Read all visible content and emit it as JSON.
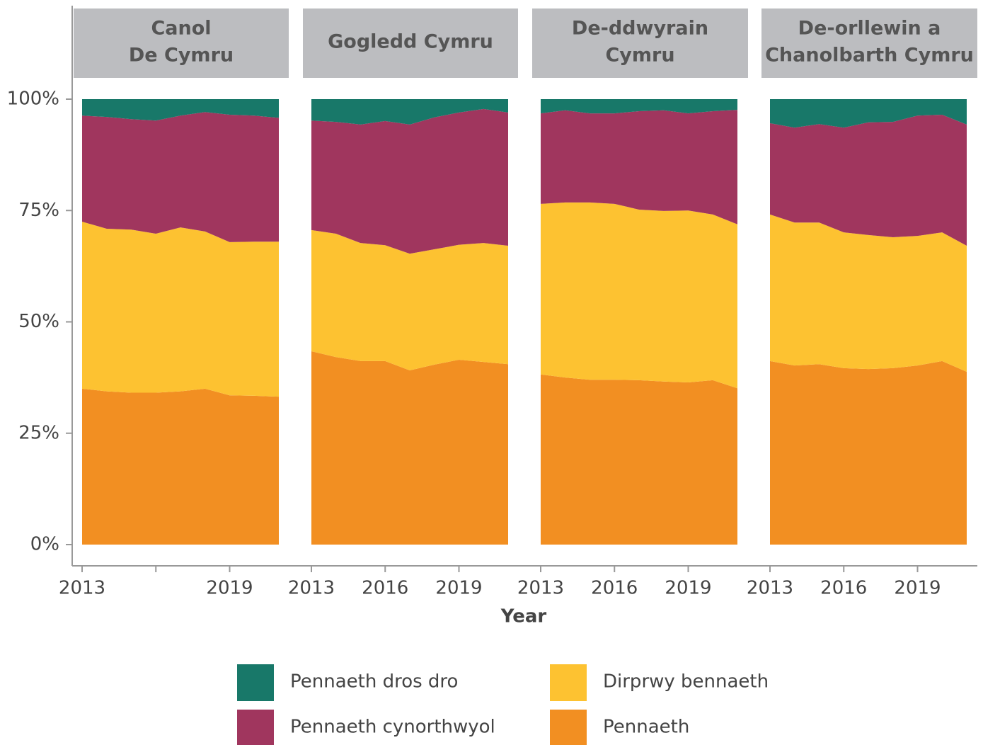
{
  "chart_data": {
    "type": "area",
    "xlabel": "Year",
    "ylim": [
      0,
      100
    ],
    "yticks": [
      {
        "value": 0,
        "label": "0%"
      },
      {
        "value": 25,
        "label": "25%"
      },
      {
        "value": 50,
        "label": "50%"
      },
      {
        "value": 75,
        "label": "75%"
      },
      {
        "value": 100,
        "label": "100%"
      }
    ],
    "xlim": [
      2013,
      2021
    ],
    "panels": [
      {
        "title": [
          "Canol",
          "De Cymru"
        ],
        "x": [
          2013,
          2014,
          2015,
          2016,
          2017,
          2018,
          2019,
          2020,
          2021
        ],
        "xticks": [
          2013,
          {
            "value": 2016,
            "label": null
          },
          2019
        ]
      },
      {
        "title": [
          "Gogledd Cymru"
        ],
        "x": [
          2013,
          2014,
          2015,
          2016,
          2017,
          2018,
          2019,
          2020,
          2021
        ],
        "xticks": [
          2013,
          2016,
          2019
        ]
      },
      {
        "title": [
          "De-ddwyrain",
          "Cymru"
        ],
        "x": [
          2013,
          2014,
          2015,
          2016,
          2017,
          2018,
          2019,
          2020,
          2021
        ],
        "xticks": [
          2013,
          2016,
          2019
        ]
      },
      {
        "title": [
          "De-orllewin a",
          "Chanolbarth Cymru"
        ],
        "x": [
          2013,
          2014,
          2015,
          2016,
          2017,
          2018,
          2019,
          2020,
          2021
        ],
        "xticks": [
          2013,
          2016,
          2019
        ]
      }
    ],
    "series": [
      {
        "name": "Pennaeth",
        "color": "#f28f22",
        "values": [
          [
            35.0,
            34.4,
            34.1,
            34.1,
            34.4,
            35.0,
            33.5,
            33.4,
            33.2
          ],
          [
            43.4,
            42.1,
            41.2,
            41.2,
            39.1,
            40.4,
            41.5,
            41.0,
            40.5
          ],
          [
            38.2,
            37.5,
            37.0,
            37.0,
            36.9,
            36.6,
            36.4,
            36.9,
            35.1
          ],
          [
            41.2,
            40.2,
            40.5,
            39.6,
            39.4,
            39.6,
            40.2,
            41.2,
            38.8
          ]
        ]
      },
      {
        "name": "Dirprwy bennaeth",
        "color": "#fdc231",
        "values": [
          [
            37.5,
            36.5,
            36.6,
            35.7,
            36.8,
            35.3,
            34.4,
            34.6,
            34.8
          ],
          [
            27.2,
            27.7,
            26.5,
            26.0,
            26.2,
            25.9,
            25.8,
            26.7,
            26.6
          ],
          [
            38.3,
            39.3,
            39.8,
            39.5,
            38.3,
            38.3,
            38.6,
            37.2,
            36.8
          ],
          [
            32.9,
            32.1,
            31.8,
            30.5,
            30.1,
            29.4,
            29.1,
            28.9,
            28.3
          ]
        ]
      },
      {
        "name": "Pennaeth cynorthwyol",
        "color": "#a0365e",
        "values": [
          [
            23.8,
            25.1,
            24.8,
            25.4,
            25.1,
            26.8,
            28.6,
            28.3,
            27.8
          ],
          [
            24.6,
            25.1,
            26.6,
            27.9,
            29.0,
            29.6,
            29.7,
            30.1,
            29.9
          ],
          [
            20.3,
            20.7,
            20.0,
            20.3,
            22.1,
            22.6,
            21.8,
            23.2,
            25.7
          ],
          [
            20.5,
            21.3,
            22.1,
            23.5,
            25.3,
            25.9,
            27.0,
            26.4,
            27.2
          ]
        ]
      },
      {
        "name": "Pennaeth dros dro",
        "color": "#187869",
        "values": [
          [
            3.7,
            4.0,
            4.5,
            4.8,
            3.7,
            2.9,
            3.5,
            3.7,
            4.2
          ],
          [
            4.8,
            5.1,
            5.7,
            4.9,
            5.7,
            4.1,
            3.0,
            2.2,
            3.0
          ],
          [
            3.2,
            2.5,
            3.2,
            3.2,
            2.7,
            2.5,
            3.2,
            2.7,
            2.4
          ],
          [
            5.4,
            6.4,
            5.6,
            6.4,
            5.2,
            5.1,
            3.7,
            3.5,
            5.7
          ]
        ]
      }
    ]
  }
}
